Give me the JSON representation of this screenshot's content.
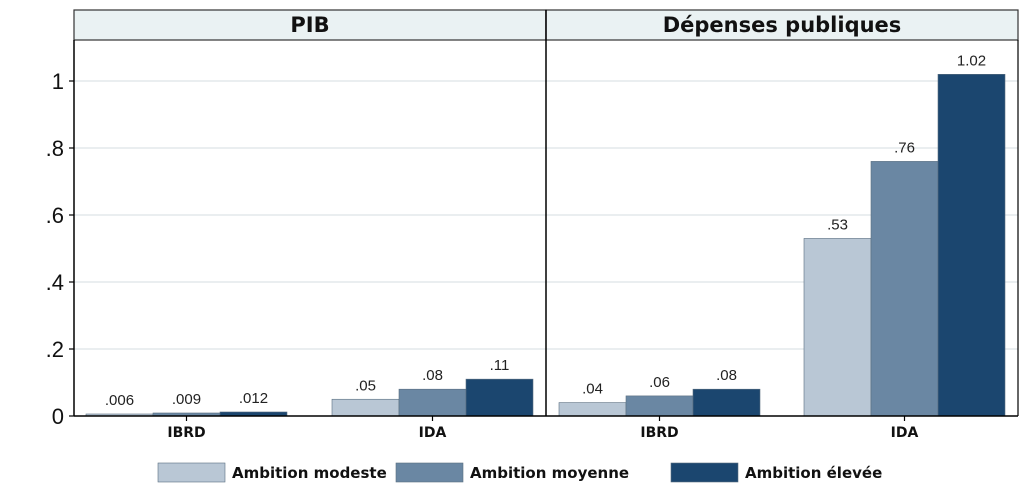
{
  "chart_data": {
    "type": "bar",
    "ylim": [
      0,
      1.1
    ],
    "yticks": [
      {
        "value": 0,
        "label": "0"
      },
      {
        "value": 0.2,
        "label": ".2"
      },
      {
        "value": 0.4,
        "label": ".4"
      },
      {
        "value": 0.6,
        "label": ".6"
      },
      {
        "value": 0.8,
        "label": ".8"
      },
      {
        "value": 1,
        "label": "1"
      }
    ],
    "series_names": [
      "Ambition modeste",
      "Ambition moyenne",
      "Ambition élevée"
    ],
    "series_colors": [
      "#b9c7d5",
      "#6a87a3",
      "#1b466f"
    ],
    "panels": [
      {
        "title": "PIB",
        "categories": [
          {
            "name": "IBRD",
            "values": [
              0.006,
              0.009,
              0.012
            ],
            "labels": [
              ".006",
              ".009",
              ".012"
            ]
          },
          {
            "name": "IDA",
            "values": [
              0.05,
              0.08,
              0.11
            ],
            "labels": [
              ".05",
              ".08",
              ".11"
            ]
          }
        ]
      },
      {
        "title": "Dépenses publiques",
        "categories": [
          {
            "name": "IBRD",
            "values": [
              0.04,
              0.06,
              0.08
            ],
            "labels": [
              ".04",
              ".06",
              ".08"
            ]
          },
          {
            "name": "IDA",
            "values": [
              0.53,
              0.76,
              1.02
            ],
            "labels": [
              ".53",
              ".76",
              "1.02"
            ]
          }
        ]
      }
    ]
  }
}
